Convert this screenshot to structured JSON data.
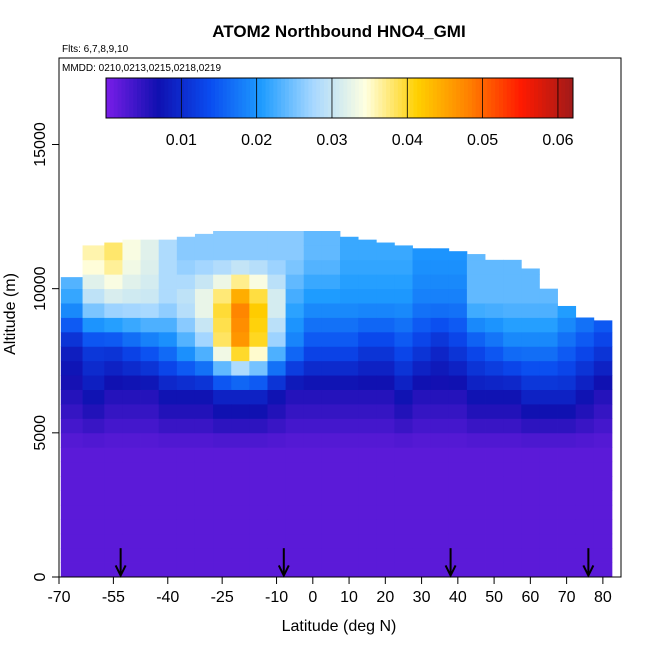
{
  "chart_data": {
    "type": "heatmap",
    "title": "ATOM2 Northbound HNO4_GMI",
    "flights_label": "Flts: 6,7,8,9,10",
    "dates_label": "MMDD: 0210,0213,0215,0218,0219",
    "xlabel": "Latitude (deg N)",
    "ylabel": "Altitude (m)",
    "xlim": [
      -70,
      85
    ],
    "ylim": [
      0,
      18000
    ],
    "x_ticks": [
      -70,
      -55,
      -40,
      -25,
      -10,
      0,
      10,
      20,
      30,
      40,
      50,
      60,
      70,
      80
    ],
    "y_ticks": [
      0,
      5000,
      10000,
      15000
    ],
    "colorbar": {
      "range": [
        0,
        0.062
      ],
      "ticks": [
        0.01,
        0.02,
        0.03,
        0.04,
        0.05,
        0.06
      ],
      "tick_labels": [
        "0.01",
        "0.02",
        "0.03",
        "0.04",
        "0.05",
        "0.06"
      ],
      "colors": [
        "#7a1ee8",
        "#1010b0",
        "#0a4cf0",
        "#1e9cff",
        "#a8d8ff",
        "#ffffe0",
        "#ffd000",
        "#ff8000",
        "#ff1a00",
        "#a01a1a"
      ]
    },
    "grid": false,
    "legend": "top (color bar)",
    "arrows_lat": [
      -53,
      -8,
      38,
      76
    ],
    "profile": {
      "lat": [
        -67,
        -60,
        -55,
        -50,
        -45,
        -40,
        -35,
        -30,
        -25,
        -20,
        -15,
        -10,
        -5,
        0,
        5,
        10,
        15,
        20,
        25,
        30,
        35,
        40,
        45,
        50,
        55,
        60,
        65,
        70,
        75,
        80
      ],
      "top_alt": [
        10400,
        11500,
        11600,
        11700,
        11700,
        11700,
        11800,
        11900,
        12000,
        12000,
        12000,
        12000,
        12000,
        12000,
        12000,
        11800,
        11700,
        11600,
        11500,
        11400,
        11400,
        11300,
        11200,
        11000,
        11000,
        10700,
        10000,
        9400,
        9000,
        8900
      ],
      "cutoffs": [
        [
          0.026,
          0.021,
          0.009,
          0.006,
          0.002
        ],
        [
          0.036,
          0.028,
          0.012,
          0.008,
          0.002
        ],
        [
          0.038,
          0.03,
          0.012,
          0.006,
          0.002
        ],
        [
          0.034,
          0.03,
          0.014,
          0.006,
          0.002
        ],
        [
          0.032,
          0.03,
          0.016,
          0.006,
          0.002
        ],
        [
          0.028,
          0.028,
          0.018,
          0.008,
          0.002
        ],
        [
          0.026,
          0.03,
          0.022,
          0.008,
          0.002
        ],
        [
          0.026,
          0.034,
          0.026,
          0.008,
          0.002
        ],
        [
          0.026,
          0.04,
          0.038,
          0.01,
          0.002
        ],
        [
          0.026,
          0.048,
          0.046,
          0.01,
          0.002
        ],
        [
          0.026,
          0.042,
          0.04,
          0.01,
          0.002
        ],
        [
          0.026,
          0.032,
          0.026,
          0.008,
          0.002
        ],
        [
          0.026,
          0.022,
          0.018,
          0.006,
          0.002
        ],
        [
          0.024,
          0.02,
          0.014,
          0.006,
          0.002
        ],
        [
          0.024,
          0.02,
          0.014,
          0.006,
          0.002
        ],
        [
          0.022,
          0.02,
          0.014,
          0.006,
          0.002
        ],
        [
          0.022,
          0.02,
          0.012,
          0.006,
          0.002
        ],
        [
          0.022,
          0.02,
          0.012,
          0.006,
          0.002
        ],
        [
          0.022,
          0.02,
          0.014,
          0.008,
          0.002
        ],
        [
          0.02,
          0.018,
          0.012,
          0.006,
          0.002
        ],
        [
          0.02,
          0.018,
          0.01,
          0.006,
          0.002
        ],
        [
          0.02,
          0.018,
          0.012,
          0.006,
          0.002
        ],
        [
          0.024,
          0.024,
          0.014,
          0.008,
          0.002
        ],
        [
          0.024,
          0.024,
          0.016,
          0.008,
          0.002
        ],
        [
          0.024,
          0.024,
          0.018,
          0.008,
          0.002
        ],
        [
          0.024,
          0.024,
          0.018,
          0.01,
          0.002
        ],
        [
          0.024,
          0.024,
          0.018,
          0.01,
          0.002
        ],
        [
          0.022,
          0.022,
          0.016,
          0.01,
          0.002
        ],
        [
          0.02,
          0.02,
          0.014,
          0.008,
          0.002
        ],
        [
          0.018,
          0.018,
          0.012,
          0.006,
          0.002
        ]
      ]
    }
  }
}
